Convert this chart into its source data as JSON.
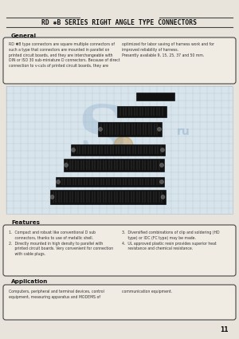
{
  "title": "RD ✱B SERIES RIGHT ANGLE TYPE CONNECTORS",
  "bg_color": "#e8e4dc",
  "page_number": "11",
  "general_title": "General",
  "general_text_left": "RD ✱B type connectors are square multiple connectors of\nsuch a type that connectors are mounted in parallel on\nprinted circuit boards, and they are interchangeable with\nDIN or ISO 30 sub-miniature D connectors. Because of direct\nconnection to v-cuts of printed circuit boards, they are",
  "general_text_right": "optimized for labor saving of harness work and for\nimproved reliability of harness.\nPresently available 9, 15, 25, 37 and 50 mm.",
  "features_title": "Features",
  "features_text_left": "1.  Compact and robust like conventional D sub\n     connectors, thanks to use of metallic shell.\n2.  Directly mounted in high density to parallel with\n     printed circuit boards. Very convenient for connection\n     with cable plugs.",
  "features_text_right": "3.  Diversified combinations of clip and soldering (HD\n     type) or IDC (FC type) may be made.\n4.  UL approved plastic resin provides superior heat\n     resistance and chemical resistance.",
  "application_title": "Application",
  "application_text": "Computers, peripheral and terminal devices, control\nequipment, measuring apparatus and MODEMS of",
  "application_text_right": "communication equipment.",
  "header_line_color": "#444444",
  "box_border_color": "#444444",
  "text_color": "#333333",
  "title_color": "#111111",
  "photo_bg": "#c8d4de",
  "photo_grid": "#aabbc8",
  "watermark_blue": "#8aaccc",
  "watermark_orange": "#c8903a",
  "connector_dark": "#111111",
  "connector_mid": "#333333"
}
